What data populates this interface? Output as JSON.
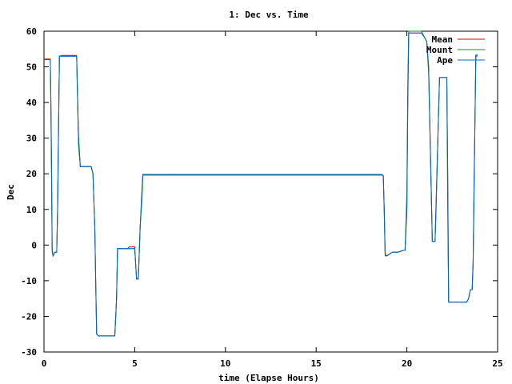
{
  "chart_data": {
    "type": "line",
    "title": "1: Dec vs. Time",
    "xlabel": "time (Elapse Hours)",
    "ylabel": "Dec",
    "xlim": [
      0,
      25
    ],
    "ylim": [
      -30,
      60
    ],
    "xticks": [
      0,
      5,
      10,
      15,
      20,
      25
    ],
    "yticks": [
      -30,
      -20,
      -10,
      0,
      10,
      20,
      30,
      40,
      50,
      60
    ],
    "grid": false,
    "legend_position": "top-right",
    "series": [
      {
        "name": "Mean",
        "color": "#e00000",
        "x": [
          0.0,
          0.35,
          0.38,
          0.42,
          0.45,
          0.5,
          0.6,
          0.7,
          0.75,
          0.8,
          0.85,
          1.0,
          1.8,
          1.9,
          2.0,
          2.6,
          2.7,
          2.8,
          2.85,
          2.9,
          3.0,
          3.9,
          4.0,
          4.05,
          4.6,
          4.7,
          5.0,
          5.05,
          5.1,
          5.2,
          5.3,
          5.4,
          5.45,
          10.0,
          18.5,
          18.6,
          18.7,
          18.75,
          18.8,
          18.85,
          18.9,
          19.2,
          19.5,
          19.8,
          19.9,
          20.0,
          20.05,
          20.1,
          20.5,
          20.8,
          21.0,
          21.1,
          21.2,
          21.4,
          21.5,
          21.55,
          21.6,
          21.8,
          22.2,
          22.25,
          22.3,
          22.4,
          22.5,
          22.8,
          23.1,
          23.3,
          23.4,
          23.5,
          23.6,
          23.65,
          23.7,
          23.8,
          23.9
        ],
        "y": [
          52.2,
          52.2,
          40,
          20,
          -1,
          -3,
          -2,
          -2,
          10,
          30,
          53,
          53.2,
          53.2,
          30,
          22,
          22,
          20,
          5,
          -10,
          -25,
          -25.5,
          -25.5,
          -15,
          -1,
          -1,
          -0.5,
          -0.5,
          -5,
          -9.5,
          -9.5,
          5,
          15,
          19.8,
          19.8,
          19.8,
          19.8,
          19.5,
          10,
          -2,
          -3,
          -3,
          -2,
          -2,
          -1.5,
          -1.5,
          10,
          40,
          59.5,
          59.5,
          59.5,
          58,
          57,
          50,
          1,
          1,
          1,
          10,
          47,
          47,
          20,
          -16,
          -16,
          -16,
          -16,
          -16,
          -16,
          -15,
          -12.5,
          -12.5,
          -5,
          15,
          53.3,
          53.3
        ]
      },
      {
        "name": "Mount",
        "color": "#00a000",
        "x": [
          0.0,
          0.35,
          0.38,
          0.42,
          0.45,
          0.5,
          0.6,
          0.7,
          0.75,
          0.8,
          0.85,
          1.0,
          1.8,
          1.9,
          2.0,
          2.6,
          2.7,
          2.8,
          2.85,
          2.9,
          3.0,
          3.9,
          4.0,
          4.05,
          4.6,
          4.7,
          5.0,
          5.05,
          5.1,
          5.2,
          5.3,
          5.4,
          5.45,
          10.0,
          18.5,
          18.6,
          18.7,
          18.75,
          18.8,
          18.85,
          18.9,
          19.2,
          19.5,
          19.8,
          19.9,
          20.0,
          20.05,
          20.1,
          20.5,
          20.8,
          21.0,
          21.1,
          21.2,
          21.4,
          21.5,
          21.55,
          21.6,
          21.8,
          22.2,
          22.25,
          22.3,
          22.4,
          22.5,
          22.8,
          23.1,
          23.3,
          23.4,
          23.5,
          23.6,
          23.65,
          23.7,
          23.8,
          23.9
        ],
        "y": [
          52.1,
          52.1,
          38,
          16,
          -2,
          -3,
          -2,
          -2,
          9,
          31,
          53,
          53,
          53,
          28,
          22,
          22,
          20,
          5,
          -10,
          -25,
          -25.5,
          -25.5,
          -15,
          -1,
          -1,
          -1,
          -1,
          -5,
          -9.5,
          -9.5,
          5,
          13,
          19.6,
          19.6,
          19.6,
          19.6,
          19.5,
          9,
          -3,
          -3,
          -3,
          -2,
          -2,
          -1.5,
          -1.5,
          15,
          45,
          60,
          60,
          60,
          58,
          57,
          48,
          1,
          1,
          1,
          8,
          47,
          47,
          10,
          -16,
          -16,
          -16,
          -16,
          -16,
          -16,
          -15,
          -12.5,
          -12.5,
          -6,
          13,
          53,
          53
        ]
      },
      {
        "name": "Ape",
        "color": "#0060e0",
        "x": [
          0.0,
          0.35,
          0.38,
          0.42,
          0.45,
          0.5,
          0.6,
          0.7,
          0.75,
          0.8,
          0.85,
          1.0,
          1.8,
          1.9,
          2.0,
          2.6,
          2.7,
          2.8,
          2.85,
          2.9,
          3.0,
          3.9,
          4.0,
          4.05,
          4.6,
          4.7,
          5.0,
          5.05,
          5.1,
          5.2,
          5.3,
          5.4,
          5.45,
          10.0,
          18.5,
          18.6,
          18.7,
          18.75,
          18.8,
          18.85,
          18.9,
          19.2,
          19.5,
          19.8,
          19.9,
          20.0,
          20.05,
          20.1,
          20.5,
          20.8,
          21.0,
          21.1,
          21.2,
          21.4,
          21.5,
          21.55,
          21.6,
          21.8,
          22.2,
          22.25,
          22.3,
          22.4,
          22.5,
          22.8,
          23.1,
          23.3,
          23.4,
          23.5,
          23.6,
          23.65,
          23.7,
          23.8,
          23.9
        ],
        "y": [
          52,
          52,
          41,
          22,
          -1,
          -3,
          -2,
          -2,
          11,
          32,
          53,
          53,
          53,
          31,
          22,
          22,
          20,
          5,
          -10,
          -25,
          -25.5,
          -25.5,
          -15,
          -1,
          -1,
          -1,
          -1,
          -5,
          -9.5,
          -9.5,
          5,
          16,
          19.8,
          19.8,
          19.8,
          19.8,
          19.5,
          10,
          -2,
          -3,
          -3,
          -2,
          -2,
          -1.5,
          -1.5,
          10,
          38,
          59.5,
          59.5,
          59.5,
          58,
          57,
          50,
          1,
          1,
          1,
          10,
          47,
          47,
          22,
          -16,
          -16,
          -16,
          -16,
          -16,
          -16,
          -15,
          -12.5,
          -12.5,
          -4,
          16,
          53.3,
          53.3
        ]
      }
    ]
  }
}
